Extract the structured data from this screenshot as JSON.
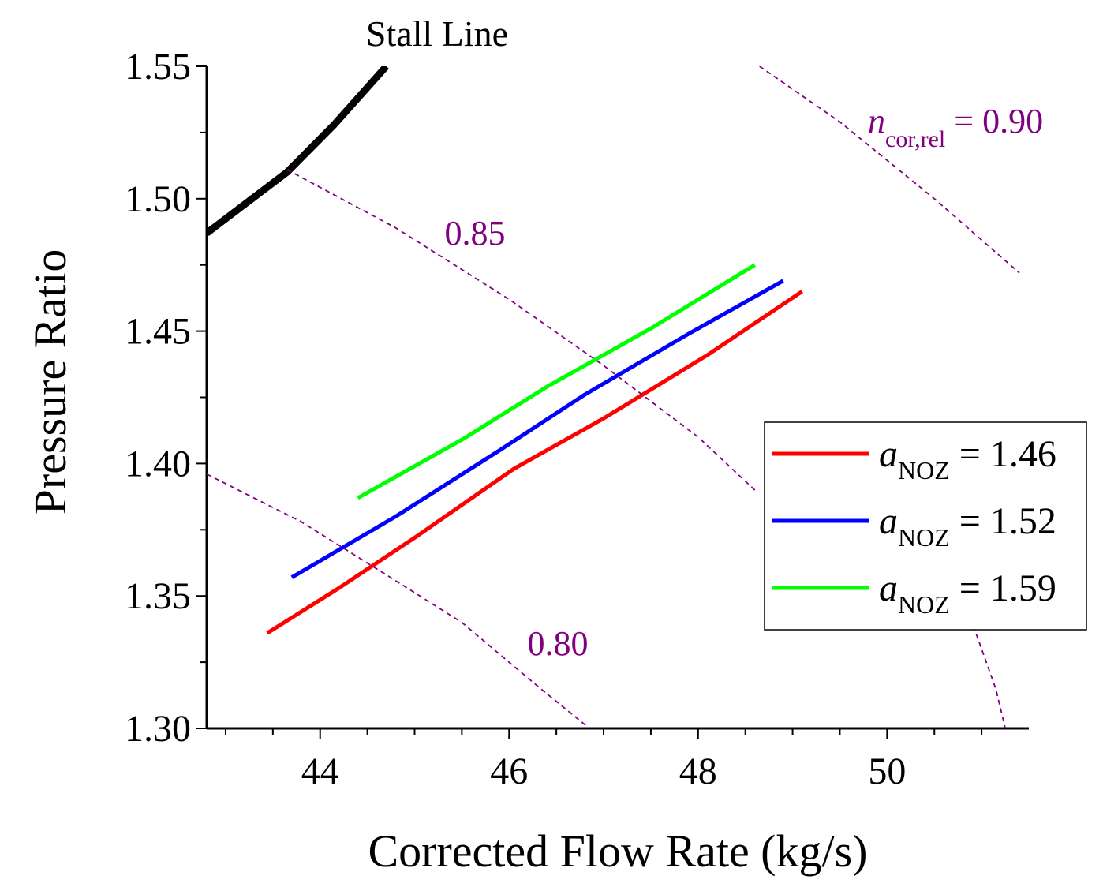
{
  "chart_data": {
    "type": "line",
    "xlabel": "Corrected Flow Rate (kg/s)",
    "ylabel": "Pressure Ratio",
    "xlim": [
      42.8,
      51.5
    ],
    "ylim": [
      1.3,
      1.55
    ],
    "x_ticks": [
      "44",
      "46",
      "48",
      "50"
    ],
    "y_ticks": [
      "1.30",
      "1.35",
      "1.40",
      "1.45",
      "1.50",
      "1.55"
    ],
    "grid": false,
    "legend_placement": "right",
    "colors": {
      "red": "#ff0000",
      "blue": "#0000ff",
      "green": "#00ff00",
      "stall": "#000000",
      "speed_lines": "#800080"
    },
    "series": [
      {
        "name": "a_NOZ = 1.46",
        "legend_label": {
          "symbol": "a",
          "subscript": "NOZ",
          "value": " = 1.46"
        },
        "color": "#ff0000",
        "x": [
          43.44,
          44.2,
          45.0,
          46.05,
          47.0,
          48.1,
          49.1
        ],
        "y": [
          1.336,
          1.353,
          1.372,
          1.398,
          1.417,
          1.441,
          1.465
        ]
      },
      {
        "name": "a_NOZ = 1.52",
        "legend_label": {
          "symbol": "a",
          "subscript": "NOZ",
          "value": " = 1.52"
        },
        "color": "#0000ff",
        "x": [
          43.7,
          44.8,
          45.9,
          46.8,
          47.9,
          48.9
        ],
        "y": [
          1.357,
          1.38,
          1.405,
          1.426,
          1.449,
          1.469
        ]
      },
      {
        "name": "a_NOZ = 1.59",
        "legend_label": {
          "symbol": "a",
          "subscript": "NOZ",
          "value": " = 1.59"
        },
        "color": "#00ff00",
        "x": [
          44.4,
          45.5,
          46.4,
          47.5,
          48.6
        ],
        "y": [
          1.387,
          1.409,
          1.429,
          1.451,
          1.475
        ]
      },
      {
        "name": "Stall Line",
        "color": "#000000",
        "x": [
          42.8,
          43.65,
          44.15,
          44.7
        ],
        "y": [
          1.487,
          1.51,
          1.528,
          1.55
        ]
      },
      {
        "name": "0.80",
        "color": "#800080",
        "dashed": true,
        "x": [
          42.8,
          43.8,
          44.7,
          45.5,
          46.3,
          46.85
        ],
        "y": [
          1.396,
          1.378,
          1.358,
          1.34,
          1.316,
          1.3
        ]
      },
      {
        "name": "0.85",
        "color": "#800080",
        "dashed": true,
        "x": [
          43.65,
          44.8,
          46.0,
          47.0,
          48.0,
          48.6
        ],
        "y": [
          1.511,
          1.489,
          1.462,
          1.437,
          1.41,
          1.39
        ]
      },
      {
        "name": "0.90",
        "color": "#800080",
        "dashed": true,
        "x": [
          48.65,
          49.5,
          50.5,
          51.4
        ],
        "y": [
          1.55,
          1.529,
          1.5,
          1.472
        ]
      },
      {
        "name": "",
        "color": "#800080",
        "dashed": true,
        "x": [
          50.5,
          50.85,
          51.15,
          51.25
        ],
        "y": [
          1.36,
          1.345,
          1.315,
          1.3
        ]
      }
    ],
    "annotations": {
      "stall_line": "Stall Line",
      "speed_090_prefix": "n",
      "speed_090_subscript": "cor,rel",
      "speed_090_value": " = 0.90",
      "speed_085": "0.85",
      "speed_080": "0.80"
    }
  }
}
